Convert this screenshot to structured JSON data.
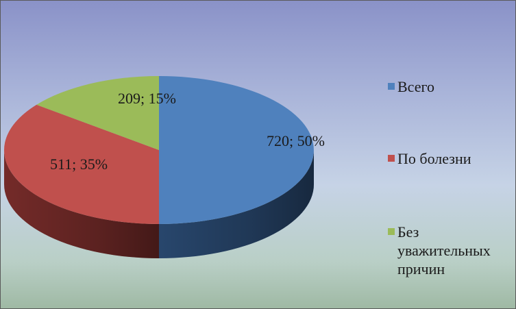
{
  "chart_data": {
    "type": "pie",
    "title": "",
    "legend_position": "right",
    "slices": [
      {
        "name": "Всего",
        "value": 720,
        "percent": 50,
        "label": "720; 50%",
        "color": "#4f81bd",
        "side_color": "#2a4a72"
      },
      {
        "name": "По болезни",
        "value": 511,
        "percent": 35,
        "label": "511; 35%",
        "color": "#c0504d",
        "side_color": "#7a2d2b"
      },
      {
        "name": "Без уважительных причин",
        "value": 209,
        "percent": 15,
        "label": "209; 15%",
        "color": "#9bbb59",
        "side_color": "#5f7735"
      }
    ]
  }
}
